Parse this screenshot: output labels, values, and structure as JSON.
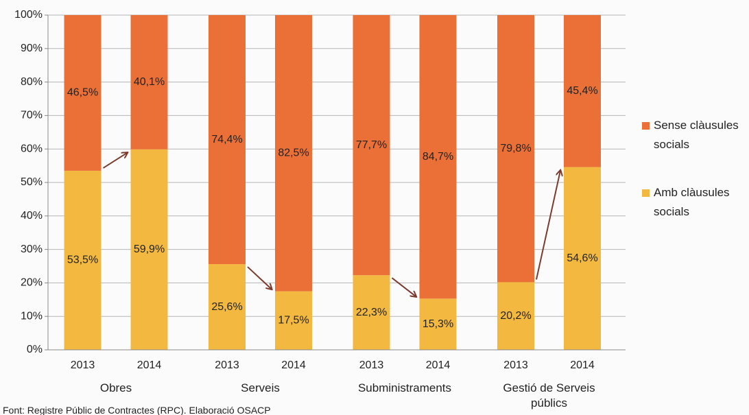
{
  "chart_data": {
    "type": "bar",
    "stacked": true,
    "categories": [
      "2013",
      "2014",
      "2013",
      "2014",
      "2013",
      "2014",
      "2013",
      "2014"
    ],
    "groups": [
      "Obres",
      "Serveis",
      "Subministraments",
      "Gestió de Serveis públics"
    ],
    "series": [
      {
        "name": "Amb clàusules socials",
        "color": "#f2b840",
        "values": [
          53.5,
          59.9,
          25.6,
          17.5,
          22.3,
          15.3,
          20.2,
          54.6
        ],
        "value_labels": [
          "53,5%",
          "59,9%",
          "25,6%",
          "17,5%",
          "22,3%",
          "15,3%",
          "20,2%",
          "54,6%"
        ]
      },
      {
        "name": "Sense clàusules socials",
        "color": "#ea7038",
        "values": [
          46.5,
          40.1,
          74.4,
          82.5,
          77.7,
          84.7,
          79.8,
          45.4
        ],
        "value_labels": [
          "46,5%",
          "40,1%",
          "74,4%",
          "82,5%",
          "77,7%",
          "84,7%",
          "79,8%",
          "45,4%"
        ]
      }
    ],
    "ylim": [
      0,
      100
    ],
    "yticks": [
      {
        "value": 0,
        "label": "0%"
      },
      {
        "value": 10,
        "label": "10%"
      },
      {
        "value": 20,
        "label": "20%"
      },
      {
        "value": 30,
        "label": "30%"
      },
      {
        "value": 40,
        "label": "40%"
      },
      {
        "value": 50,
        "label": "50%"
      },
      {
        "value": 60,
        "label": "60%"
      },
      {
        "value": 70,
        "label": "70%"
      },
      {
        "value": 80,
        "label": "80%"
      },
      {
        "value": 90,
        "label": "90%"
      },
      {
        "value": 100,
        "label": "100%"
      }
    ],
    "grid": true,
    "legend": "right",
    "source": "Font: Registre Públic de Contractes (RPC). Elaboració OSACP"
  }
}
